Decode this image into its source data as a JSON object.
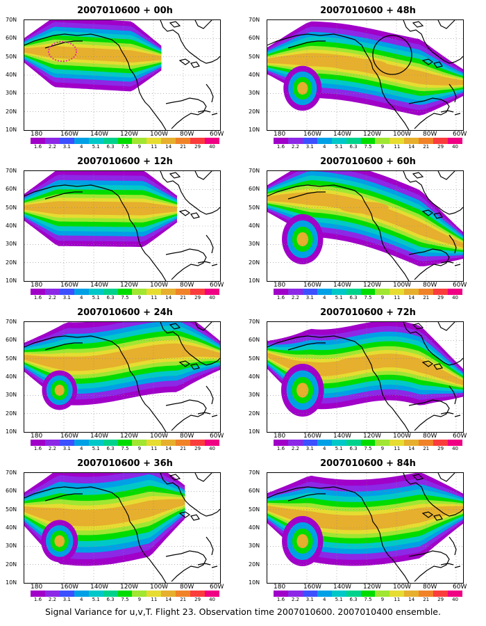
{
  "panels": [
    {
      "title": "2007010600 + 00h",
      "scheme": 0,
      "target_region": true,
      "circle": false
    },
    {
      "title": "2007010600 + 48h",
      "scheme": 4,
      "target_region": false,
      "circle": true
    },
    {
      "title": "2007010600 + 12h",
      "scheme": 1,
      "target_region": false,
      "circle": false
    },
    {
      "title": "2007010600 + 60h",
      "scheme": 5,
      "target_region": false,
      "circle": false
    },
    {
      "title": "2007010600 + 24h",
      "scheme": 2,
      "target_region": false,
      "circle": false
    },
    {
      "title": "2007010600 + 72h",
      "scheme": 6,
      "target_region": false,
      "circle": false
    },
    {
      "title": "2007010600 + 36h",
      "scheme": 3,
      "target_region": false,
      "circle": false
    },
    {
      "title": "2007010600 + 84h",
      "scheme": 7,
      "target_region": false,
      "circle": false
    }
  ],
  "lat_labels": [
    "70N",
    "60N",
    "50N",
    "40N",
    "30N",
    "20N",
    "10N"
  ],
  "lon_labels": [
    "180",
    "160W",
    "140W",
    "120W",
    "100W",
    "80W",
    "60W"
  ],
  "colorbar": {
    "labels": [
      "1.6",
      "2.2",
      "3.1",
      "4",
      "5.1",
      "6.3",
      "7.5",
      "9",
      "11",
      "14",
      "21",
      "29",
      "40"
    ],
    "colors": [
      "#a000c8",
      "#8c28e6",
      "#3c50ff",
      "#00a0e6",
      "#00c8c8",
      "#00d28c",
      "#00dc00",
      "#a0e632",
      "#e6dc32",
      "#e6af2d",
      "#f08228",
      "#fa3c3c",
      "#f00082"
    ]
  },
  "caption": "Signal Variance for u,v,T. Flight 23. Observation time 2007010600. 2007010400 ensemble."
}
